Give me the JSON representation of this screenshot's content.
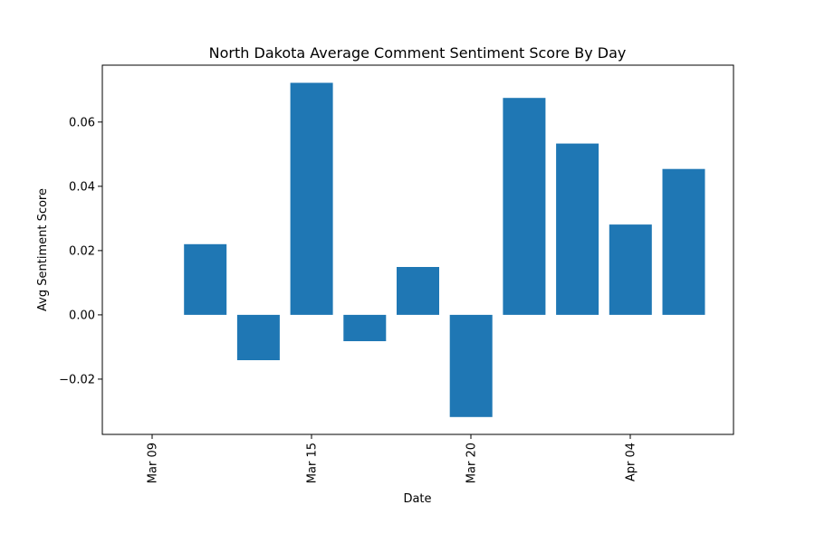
{
  "chart_data": {
    "type": "bar",
    "title": "North Dakota Average Comment Sentiment Score By Day",
    "xlabel": "Date",
    "ylabel": "Avg Sentiment Score",
    "x_tick_labels": [
      "Mar 09",
      "Mar 15",
      "Mar 20",
      "Apr 04"
    ],
    "y_tick_labels": [
      "−0.02",
      "0.00",
      "0.02",
      "0.04",
      "0.06"
    ],
    "y_ticks": [
      -0.02,
      0.0,
      0.02,
      0.04,
      0.06
    ],
    "ylim": [
      -0.0372,
      0.0777
    ],
    "values": [
      0.022,
      -0.0141,
      0.0722,
      -0.0082,
      0.0149,
      -0.0318,
      0.0675,
      0.0533,
      0.0281,
      0.0454
    ],
    "bar_color": "#1f77b4",
    "grid": false,
    "legend": "none"
  }
}
